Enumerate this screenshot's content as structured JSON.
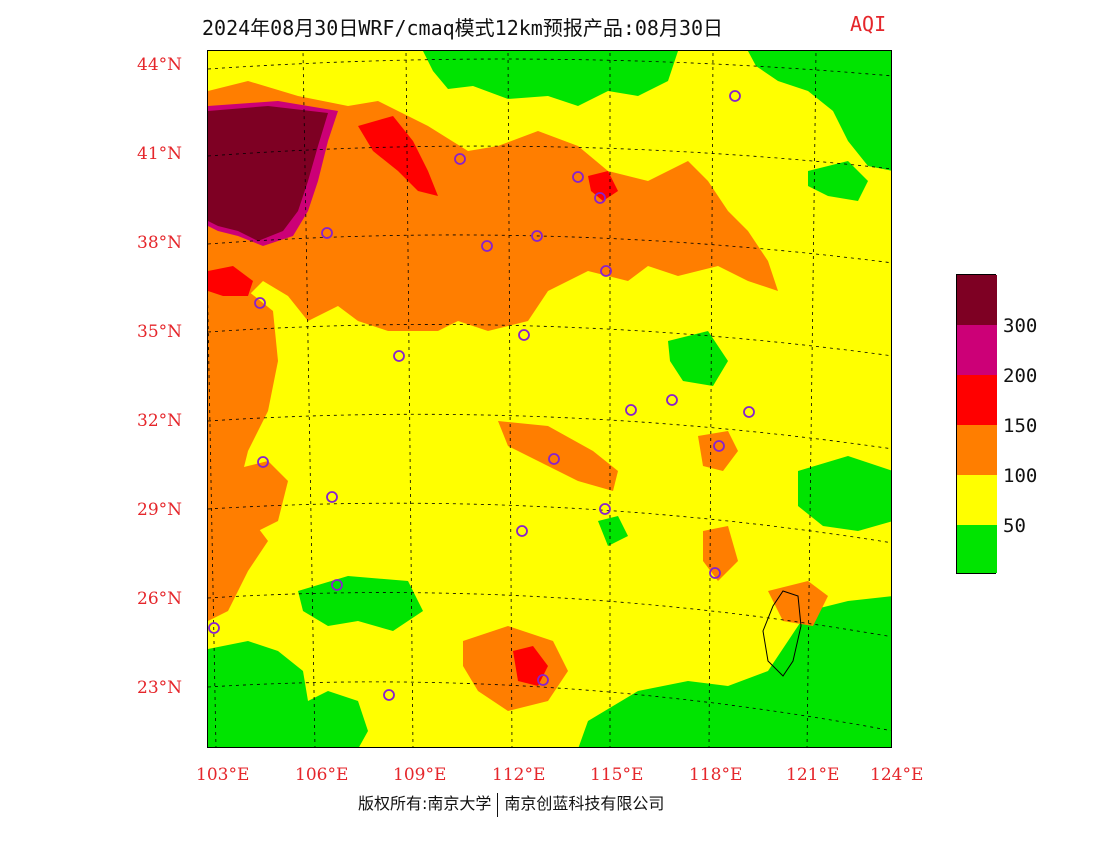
{
  "header": {
    "title": "2024年08月30日WRF/cmaq模式12km预报产品:08月30日",
    "variable": "AQI"
  },
  "map": {
    "projection": "lambert",
    "extent": {
      "lon_min": 103,
      "lon_max": 124,
      "lat_min": 21,
      "lat_max": 45
    },
    "lat_ticks": [
      "44°N",
      "41°N",
      "38°N",
      "35°N",
      "32°N",
      "29°N",
      "26°N",
      "23°N"
    ],
    "lon_ticks": [
      "103°E",
      "106°E",
      "109°E",
      "112°E",
      "115°E",
      "118°E",
      "121°E",
      "124°E"
    ],
    "background_class": "50-100",
    "city_markers_count": 26
  },
  "legend": {
    "bins": [
      {
        "range": "0-50",
        "color": "#00e400"
      },
      {
        "range": "50-100",
        "color": "#ffff00"
      },
      {
        "range": "100-150",
        "color": "#ff7e00"
      },
      {
        "range": "150-200",
        "color": "#ff0000"
      },
      {
        "range": "200-300",
        "color": "#cc0077"
      },
      {
        "range": ">300",
        "color": "#7e0023"
      }
    ],
    "labels": [
      "300",
      "200",
      "150",
      "100",
      "50"
    ]
  },
  "footer": {
    "left": "版权所有:南京大学",
    "right": "南京创蓝科技有限公司"
  }
}
